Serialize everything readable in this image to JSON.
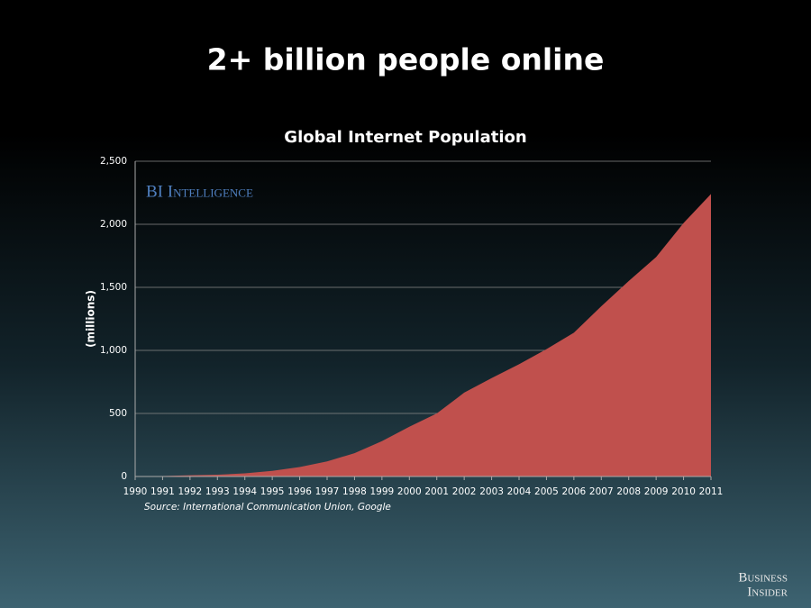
{
  "slide": {
    "title": "2+ billion people online",
    "logo": {
      "line1": "Business",
      "line2": "Insider"
    }
  },
  "chart_data": {
    "type": "area",
    "title": "Global Internet Population",
    "y_label": "(millions)",
    "source": "Source: International Communication Union, Google",
    "watermark": "BI Intelligence",
    "x": [
      1990,
      1991,
      1992,
      1993,
      1994,
      1995,
      1996,
      1997,
      1998,
      1999,
      2000,
      2001,
      2002,
      2003,
      2004,
      2005,
      2006,
      2007,
      2008,
      2009,
      2010,
      2011
    ],
    "values": [
      3,
      4,
      10,
      14,
      25,
      45,
      75,
      120,
      185,
      280,
      395,
      500,
      665,
      780,
      890,
      1010,
      1140,
      1350,
      1550,
      1740,
      2010,
      2240
    ],
    "color": "#c0504d",
    "xlim": [
      1990,
      2011
    ],
    "ylim": [
      0,
      2500
    ],
    "yticks": [
      0,
      500,
      {
        "value": 1000,
        "label": "1,000"
      },
      {
        "value": 1500,
        "label": "1,500"
      },
      {
        "value": 2000,
        "label": "2,000"
      },
      {
        "value": 2500,
        "label": "2,500"
      }
    ],
    "grid": true
  }
}
